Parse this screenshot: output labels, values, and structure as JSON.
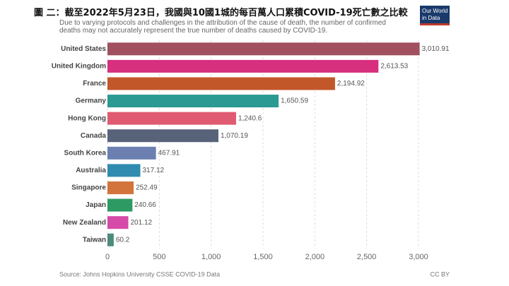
{
  "chart_data": {
    "type": "hbar",
    "title": "圖 二：截至2022年5月23日，我國與10國1城的每百萬人口累積COVID-19死亡數之比較",
    "subtitle": "Due to varying protocols and challenges in the attribution of the cause of death, the number of confirmed deaths may not accurately represent the true number of deaths caused by COVID-19.",
    "logo": [
      "Our World",
      "in Data"
    ],
    "source": "Source: Johns Hopkins University CSSE COVID-19 Data",
    "license": "CC BY",
    "categories": [
      "United States",
      "United Kingdom",
      "France",
      "Germany",
      "Hong Kong",
      "Canada",
      "South Korea",
      "Australia",
      "Singapore",
      "Japan",
      "New Zealand",
      "Taiwan"
    ],
    "values": [
      3010.91,
      2613.53,
      2194.92,
      1650.59,
      1240.6,
      1070.19,
      467.91,
      317.12,
      252.49,
      240.66,
      201.12,
      60.2
    ],
    "value_labels": [
      "3,010.91",
      "2,613.53",
      "2,194.92",
      "1,650.59",
      "1,240.6",
      "1,070.19",
      "467.91",
      "317.12",
      "252.49",
      "240.66",
      "201.12",
      "60.2"
    ],
    "colors": [
      "#a0505f",
      "#d6307e",
      "#c2572a",
      "#2b9a92",
      "#e05b72",
      "#58637a",
      "#6b80b1",
      "#2f8bb0",
      "#d2743c",
      "#2d9a64",
      "#d64aa8",
      "#4b8a7c"
    ],
    "xlim": [
      0,
      3000
    ],
    "xticks": [
      0,
      500,
      {
        "value": 1000,
        "label": "1,000"
      },
      {
        "value": 1500,
        "label": "1,500"
      },
      {
        "value": 2000,
        "label": "2,000"
      },
      {
        "value": 2500,
        "label": "2,500"
      },
      {
        "value": 3000,
        "label": "3,000"
      }
    ],
    "grid": true
  }
}
